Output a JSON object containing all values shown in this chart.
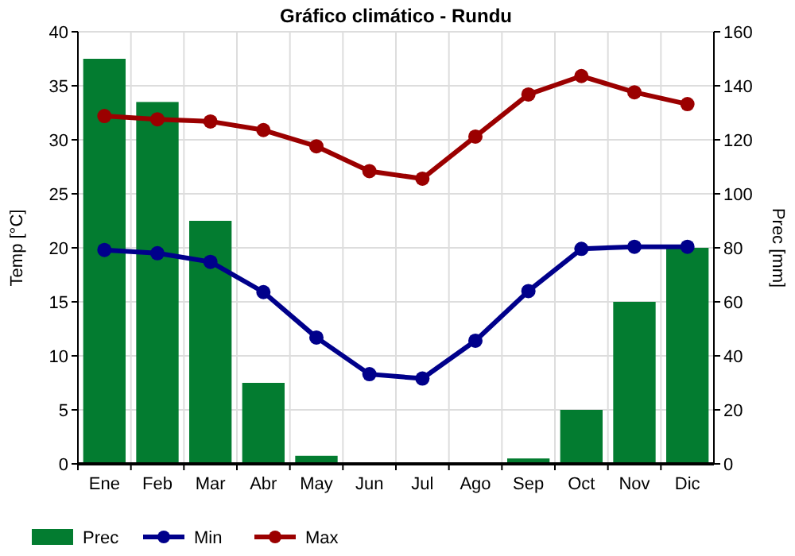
{
  "chart_data": {
    "type": "bar",
    "title": "Gráfico climático - Rundu",
    "ylabel": "Temp [°C]",
    "y2label": "Prec [mm]",
    "categories": [
      "Ene",
      "Feb",
      "Mar",
      "Abr",
      "May",
      "Jun",
      "Jul",
      "Ago",
      "Sep",
      "Oct",
      "Nov",
      "Dic"
    ],
    "series": [
      {
        "name": "Prec",
        "axis": "y2",
        "color": "#037c30",
        "values": [
          150,
          134,
          90,
          30,
          3,
          0,
          0,
          0,
          2,
          20,
          60,
          80
        ]
      },
      {
        "name": "Min",
        "type": "line",
        "color": "#00008b",
        "values": [
          19.8,
          19.5,
          18.7,
          15.9,
          11.7,
          8.3,
          7.9,
          11.4,
          16.0,
          19.9,
          20.1,
          20.1
        ]
      },
      {
        "name": "Max",
        "type": "line",
        "color": "#9b0000",
        "values": [
          32.2,
          31.9,
          31.7,
          30.9,
          29.4,
          27.1,
          26.4,
          30.3,
          34.2,
          35.9,
          34.4,
          33.3
        ]
      }
    ],
    "ylim": [
      0,
      40
    ],
    "yticks": [
      0,
      5,
      10,
      15,
      20,
      25,
      30,
      35,
      40
    ],
    "y2lim": [
      0,
      160
    ],
    "y2ticks": [
      0,
      20,
      40,
      60,
      80,
      100,
      120,
      140,
      160
    ],
    "grid": true,
    "legend": "bottom",
    "marker": "circle",
    "line_style": "solid"
  }
}
